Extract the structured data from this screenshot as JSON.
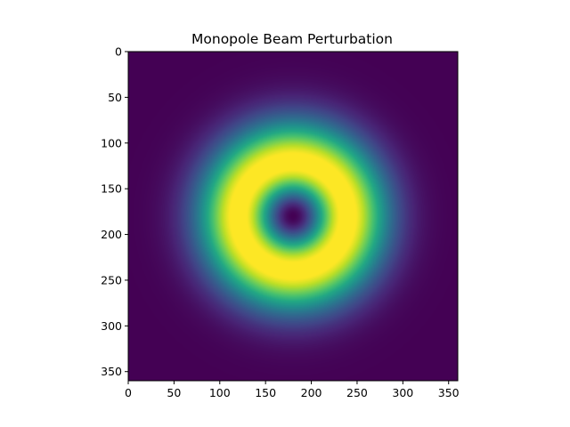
{
  "chart_data": {
    "type": "heatmap",
    "title": "Monopole Beam Perturbation",
    "xlabel": "",
    "ylabel": "",
    "xlim": [
      0,
      360
    ],
    "ylim": [
      360,
      0
    ],
    "x_ticks": [
      0,
      50,
      100,
      150,
      200,
      250,
      300,
      350
    ],
    "y_ticks": [
      0,
      50,
      100,
      150,
      200,
      250,
      300,
      350
    ],
    "grid": false,
    "colormap": "viridis",
    "field": {
      "description": "ring-shaped (annular) intensity",
      "center": [
        180,
        180
      ],
      "peak_radius": 45,
      "falloff_sigma": 42,
      "max_value": 1.0,
      "min_value": 0.0
    }
  }
}
